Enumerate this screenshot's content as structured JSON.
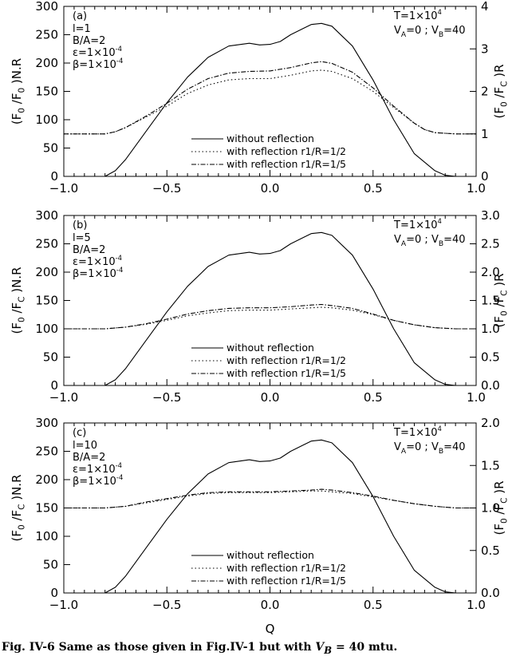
{
  "figure": {
    "x_axis_label": "Q",
    "caption": {
      "prefix": "Fig. IV-6 Same as those given in Fig.IV-1 but with ",
      "math": "V",
      "math_sub": "B",
      "suffix": " = 40 mtu."
    }
  },
  "legend_labels": [
    "without reflection",
    "with reflection r1/R=1/2",
    "with reflection r1/R=1/5"
  ],
  "chart_data": [
    {
      "type": "line",
      "panel_label": "(a)",
      "params_left": [
        "l=1",
        "B/A=2",
        "ε=1×10",
        "β=1×10"
      ],
      "params_left_exp": [
        "",
        "",
        "-4",
        "-4"
      ],
      "param_T": "T=1×10",
      "param_T_exp": "4",
      "param_V": "V_A=0 ; V_B=40",
      "ylabel_left": "(F0/F0)N.R",
      "ylabel_right": "(F0/FC)R",
      "xlim": [
        -1.0,
        1.0
      ],
      "ylim_left": [
        0,
        300
      ],
      "ylim_right": [
        0,
        4
      ],
      "xticks": [
        "−1.0",
        "−0.5",
        "0.0",
        "0.5",
        "1.0"
      ],
      "yticks_left": [
        "0",
        "50",
        "100",
        "150",
        "200",
        "250",
        "300"
      ],
      "yticks_right": [
        "0",
        "1",
        "2",
        "3",
        "4"
      ],
      "grid": false,
      "series": [
        {
          "name": "without reflection",
          "axis": "left",
          "style": "solid",
          "x": [
            -1.0,
            -0.8,
            -0.75,
            -0.7,
            -0.6,
            -0.5,
            -0.4,
            -0.3,
            -0.2,
            -0.1,
            -0.05,
            0.0,
            0.05,
            0.1,
            0.2,
            0.25,
            0.3,
            0.4,
            0.5,
            0.6,
            0.7,
            0.8,
            0.85,
            0.9,
            1.0
          ],
          "y": [
            0,
            0,
            10,
            30,
            80,
            130,
            175,
            210,
            230,
            235,
            232,
            233,
            238,
            250,
            268,
            270,
            265,
            230,
            170,
            100,
            40,
            10,
            2,
            0,
            0
          ]
        },
        {
          "name": "with reflection r1/R=1/2",
          "axis": "right",
          "style": "dotted",
          "x": [
            -1.0,
            -0.8,
            -0.75,
            -0.7,
            -0.6,
            -0.5,
            -0.4,
            -0.3,
            -0.2,
            -0.1,
            0.0,
            0.1,
            0.2,
            0.25,
            0.3,
            0.4,
            0.5,
            0.6,
            0.7,
            0.75,
            0.8,
            0.9,
            1.0
          ],
          "y": [
            1.0,
            1.0,
            1.05,
            1.15,
            1.4,
            1.65,
            1.95,
            2.15,
            2.27,
            2.3,
            2.3,
            2.38,
            2.48,
            2.5,
            2.47,
            2.3,
            2.0,
            1.62,
            1.25,
            1.1,
            1.03,
            1.0,
            1.0
          ]
        },
        {
          "name": "with reflection r1/R=1/5",
          "axis": "right",
          "style": "dashdot",
          "x": [
            -1.0,
            -0.8,
            -0.75,
            -0.7,
            -0.6,
            -0.5,
            -0.4,
            -0.3,
            -0.2,
            -0.1,
            0.0,
            0.1,
            0.2,
            0.25,
            0.3,
            0.4,
            0.5,
            0.6,
            0.7,
            0.75,
            0.8,
            0.9,
            1.0
          ],
          "y": [
            1.0,
            1.0,
            1.05,
            1.15,
            1.42,
            1.72,
            2.05,
            2.3,
            2.43,
            2.47,
            2.48,
            2.56,
            2.67,
            2.7,
            2.66,
            2.45,
            2.08,
            1.65,
            1.25,
            1.1,
            1.03,
            1.0,
            1.0
          ]
        }
      ]
    },
    {
      "type": "line",
      "panel_label": "(b)",
      "params_left": [
        "l=5",
        "B/A=2",
        "ε=1×10",
        "β=1×10"
      ],
      "params_left_exp": [
        "",
        "",
        "-4",
        "-4"
      ],
      "param_T": "T=1×10",
      "param_T_exp": "4",
      "param_V": "V_A=0 ; V_B=40",
      "ylabel_left": "(F0/FC)N.R",
      "ylabel_right": "(F0/FC)R",
      "xlim": [
        -1.0,
        1.0
      ],
      "ylim_left": [
        0,
        300
      ],
      "ylim_right": [
        0,
        3
      ],
      "xticks": [
        "−1.0",
        "−0.5",
        "0.0",
        "0.5",
        "1.0"
      ],
      "yticks_left": [
        "0",
        "50",
        "100",
        "150",
        "200",
        "250",
        "300"
      ],
      "yticks_right": [
        "0.0",
        "0.5",
        "1.0",
        "1.5",
        "2.0",
        "2.5",
        "3.0"
      ],
      "grid": false,
      "series": [
        {
          "name": "without reflection",
          "axis": "left",
          "style": "solid",
          "x": [
            -1.0,
            -0.8,
            -0.75,
            -0.7,
            -0.6,
            -0.5,
            -0.4,
            -0.3,
            -0.2,
            -0.1,
            -0.05,
            0.0,
            0.05,
            0.1,
            0.2,
            0.25,
            0.3,
            0.4,
            0.5,
            0.6,
            0.7,
            0.8,
            0.85,
            0.9,
            1.0
          ],
          "y": [
            0,
            0,
            10,
            30,
            80,
            130,
            175,
            210,
            230,
            235,
            232,
            233,
            238,
            250,
            268,
            270,
            265,
            230,
            170,
            100,
            40,
            10,
            2,
            0,
            0
          ]
        },
        {
          "name": "with reflection r1/R=1/2",
          "axis": "right",
          "style": "dotted",
          "x": [
            -1.0,
            -0.8,
            -0.7,
            -0.6,
            -0.5,
            -0.4,
            -0.3,
            -0.2,
            -0.1,
            0.0,
            0.1,
            0.2,
            0.25,
            0.3,
            0.4,
            0.5,
            0.6,
            0.7,
            0.8,
            0.9,
            1.0
          ],
          "y": [
            1.0,
            1.0,
            1.03,
            1.08,
            1.15,
            1.23,
            1.28,
            1.32,
            1.33,
            1.33,
            1.35,
            1.37,
            1.38,
            1.37,
            1.33,
            1.25,
            1.15,
            1.07,
            1.02,
            1.0,
            1.0
          ]
        },
        {
          "name": "with reflection r1/R=1/5",
          "axis": "right",
          "style": "dashdot",
          "x": [
            -1.0,
            -0.8,
            -0.7,
            -0.6,
            -0.5,
            -0.4,
            -0.3,
            -0.2,
            -0.1,
            0.0,
            0.1,
            0.2,
            0.25,
            0.3,
            0.4,
            0.5,
            0.6,
            0.7,
            0.8,
            0.9,
            1.0
          ],
          "y": [
            1.0,
            1.0,
            1.03,
            1.09,
            1.17,
            1.26,
            1.32,
            1.36,
            1.37,
            1.37,
            1.39,
            1.42,
            1.43,
            1.41,
            1.36,
            1.26,
            1.15,
            1.07,
            1.02,
            1.0,
            1.0
          ]
        }
      ]
    },
    {
      "type": "line",
      "panel_label": "(c)",
      "params_left": [
        "l=10",
        "B/A=2",
        "ε=1×10",
        "β=1×10"
      ],
      "params_left_exp": [
        "",
        "",
        "-4",
        "-4"
      ],
      "param_T": "T=1×10",
      "param_T_exp": "4",
      "param_V": "V_A=0 ; V_B=40",
      "ylabel_left": "(F0/FC)N.R",
      "ylabel_right": "(F0/FC)R",
      "xlim": [
        -1.0,
        1.0
      ],
      "ylim_left": [
        0,
        300
      ],
      "ylim_right": [
        0,
        2
      ],
      "xticks": [
        "−1.0",
        "−0.5",
        "0.0",
        "0.5",
        "1.0"
      ],
      "yticks_left": [
        "0",
        "50",
        "100",
        "150",
        "200",
        "250",
        "300"
      ],
      "yticks_right": [
        "0.0",
        "0.5",
        "1.0",
        "1.5",
        "2.0"
      ],
      "grid": false,
      "series": [
        {
          "name": "without reflection",
          "axis": "left",
          "style": "solid",
          "x": [
            -1.0,
            -0.8,
            -0.75,
            -0.7,
            -0.6,
            -0.5,
            -0.4,
            -0.3,
            -0.2,
            -0.1,
            -0.05,
            0.0,
            0.05,
            0.1,
            0.2,
            0.25,
            0.3,
            0.4,
            0.5,
            0.6,
            0.7,
            0.8,
            0.85,
            0.9,
            1.0
          ],
          "y": [
            0,
            0,
            10,
            30,
            80,
            130,
            175,
            210,
            230,
            235,
            232,
            233,
            238,
            250,
            268,
            270,
            265,
            230,
            170,
            100,
            40,
            10,
            2,
            0,
            0
          ]
        },
        {
          "name": "with reflection r1/R=1/2",
          "axis": "right",
          "style": "dotted",
          "x": [
            -1.0,
            -0.8,
            -0.7,
            -0.6,
            -0.5,
            -0.4,
            -0.3,
            -0.2,
            -0.1,
            0.0,
            0.1,
            0.2,
            0.25,
            0.3,
            0.4,
            0.5,
            0.6,
            0.7,
            0.8,
            0.9,
            1.0
          ],
          "y": [
            1.0,
            1.0,
            1.02,
            1.06,
            1.1,
            1.14,
            1.17,
            1.18,
            1.18,
            1.18,
            1.19,
            1.2,
            1.2,
            1.19,
            1.17,
            1.13,
            1.09,
            1.05,
            1.02,
            1.0,
            1.0
          ]
        },
        {
          "name": "with reflection r1/R=1/5",
          "axis": "right",
          "style": "dashdot",
          "x": [
            -1.0,
            -0.8,
            -0.7,
            -0.6,
            -0.5,
            -0.4,
            -0.3,
            -0.2,
            -0.1,
            0.0,
            0.1,
            0.2,
            0.25,
            0.3,
            0.4,
            0.5,
            0.6,
            0.7,
            0.8,
            0.9,
            1.0
          ],
          "y": [
            1.0,
            1.0,
            1.02,
            1.07,
            1.11,
            1.15,
            1.18,
            1.19,
            1.19,
            1.19,
            1.2,
            1.21,
            1.22,
            1.21,
            1.18,
            1.14,
            1.09,
            1.05,
            1.02,
            1.0,
            1.0
          ]
        }
      ]
    }
  ]
}
